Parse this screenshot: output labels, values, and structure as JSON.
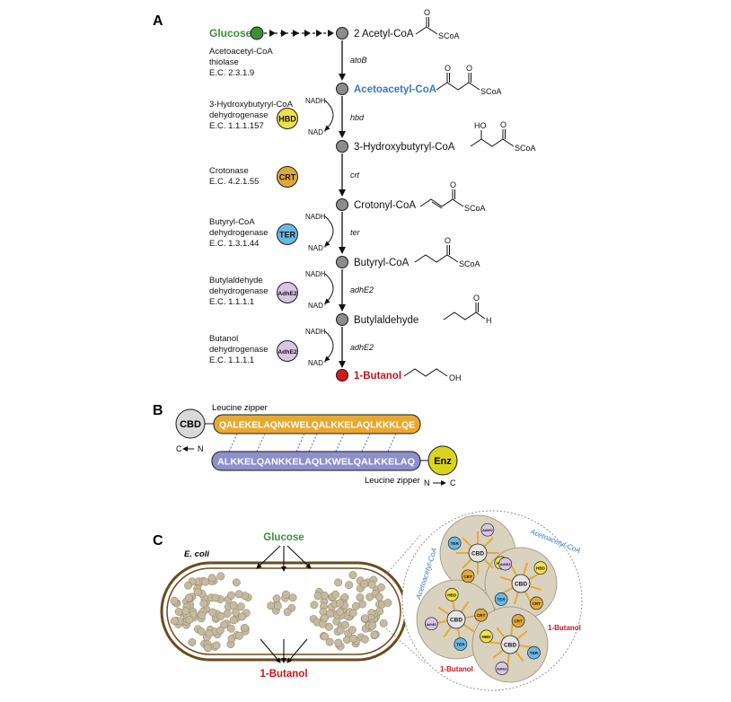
{
  "panels": {
    "a": "A",
    "b": "B",
    "c": "C"
  },
  "pathway": {
    "glucose": "Glucose",
    "metabolites": [
      "2 Acetyl-CoA",
      "Acetoacetyl-CoA",
      "3-Hydroxybutyryl-CoA",
      "Crotonyl-CoA",
      "Butyryl-CoA",
      "Butylaldehyde",
      "1-Butanol"
    ],
    "genes": [
      "atoB",
      "hbd",
      "crt",
      "ter",
      "adhE2",
      "adhE2"
    ],
    "cofactor_in": "NADH",
    "cofactor_out": "NAD⁺",
    "struct_labels": {
      "scoa": "SCoA",
      "o": "O",
      "ho": "HO",
      "h": "H",
      "oh": "OH"
    },
    "enzymes": [
      {
        "l1": "Acetoacetyl-CoA",
        "l2": "thiolase",
        "l3": "E.C. 2.3.1.9",
        "badge": ""
      },
      {
        "l1": "3-Hydroxybutyryl-CoA",
        "l2": "dehydrogenase",
        "l3": "E.C. 1.1.1.157",
        "badge": "HBD"
      },
      {
        "l1": "Crotonase",
        "l2": "E.C. 4.2.1.55",
        "l3": "",
        "badge": "CRT"
      },
      {
        "l1": "Butyryl-CoA",
        "l2": "dehydrogenase",
        "l3": "E.C. 1.3.1.44",
        "badge": "TER"
      },
      {
        "l1": "Butylaldehyde",
        "l2": "dehydrogenase",
        "l3": "E.C. 1.1.1.1",
        "badge": "AdhE2"
      },
      {
        "l1": "Butanol",
        "l2": "dehydrogenase",
        "l3": "E.C. 1.1.1.1",
        "badge": "AdhE2"
      }
    ]
  },
  "zipper": {
    "cbd": "CBD",
    "enz": "Enz",
    "top_label": "Leucine zipper",
    "bottom_label": "Leucine zipper",
    "top_seq": "QALEKELAQNKWELQALKKELAQLKKKLQE",
    "bottom_seq": "ALKKELQANKKELAQLKWELQALKKELAQ",
    "c_left": "C",
    "n_left": "N",
    "n_right": "N",
    "c_right": "C"
  },
  "cell": {
    "organism": "E. coli",
    "glucose": "Glucose",
    "butanol": "1-Butanol",
    "zoom_acetoacetyl": "Acetoacetyl-CoA",
    "zoom_butanol": "1-Butanol",
    "zoom_cbd": "CBD",
    "zoom_badges": [
      "HBD",
      "CRT",
      "TER",
      "AdhE2"
    ]
  },
  "colors": {
    "glucose": "#3f8f3a",
    "acetoacetyl": "#3b78c2",
    "butanol": "#c4161c",
    "hbd": "#f0e04a",
    "crt": "#e0a93a",
    "ter": "#6bb8e6",
    "adhe2": "#d9c5e4",
    "cbd": "#d9d9d9",
    "enz": "#d8d51e",
    "zipper_top": "#e8a933",
    "zipper_bottom": "#8f8fcc",
    "cell_wall": "#6b4a1f",
    "granule": "#c5b9a0"
  }
}
